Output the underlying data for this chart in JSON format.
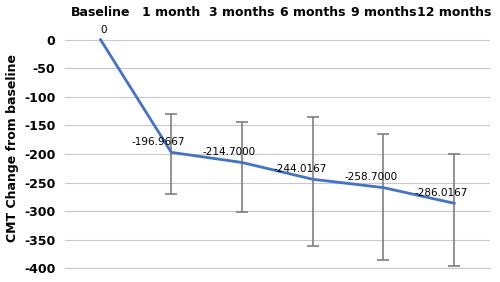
{
  "x_labels": [
    "Baseline",
    "1 month",
    "3 months",
    "6 months",
    "9 months",
    "12 months"
  ],
  "x_values": [
    0,
    1,
    2,
    3,
    4,
    5
  ],
  "y_values": [
    0,
    -196.9667,
    -214.7,
    -244.0167,
    -258.7,
    -286.0167
  ],
  "annotations": [
    "0",
    "-196.9667",
    "-214.7000",
    "-244.0167",
    "-258.7000",
    "-286.0167"
  ],
  "yerr_upper": [
    0,
    67,
    70,
    109,
    94,
    86
  ],
  "yerr_lower": [
    0,
    73,
    86,
    116,
    127,
    109
  ],
  "line_color": "#4472C4",
  "error_color": "#7f7f7f",
  "ylabel": "CMT Change from baseline",
  "ylim": [
    -400,
    20
  ],
  "yticks": [
    0,
    -50,
    -100,
    -150,
    -200,
    -250,
    -300,
    -350,
    -400
  ],
  "background_color": "#ffffff",
  "grid_color": "#c8c8c8",
  "annotation_fontsize": 7.5,
  "label_fontsize": 9,
  "tick_fontsize": 9
}
